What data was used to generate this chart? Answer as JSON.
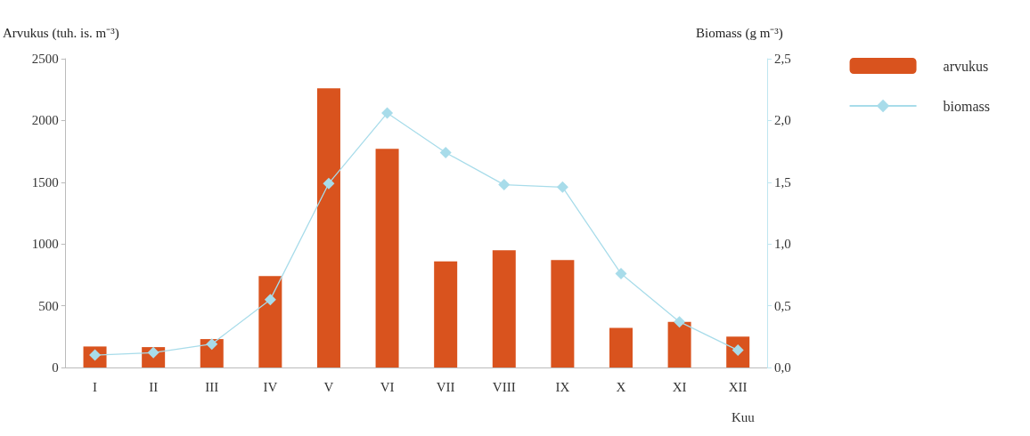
{
  "chart_data": {
    "type": "bar",
    "xlabel": "Kuu",
    "ylabel": "Arvukus (tuh. is. m⁻³)",
    "y2label": "Biomass (g m⁻³)",
    "categories": [
      "I",
      "II",
      "III",
      "IV",
      "V",
      "VI",
      "VII",
      "VIII",
      "IX",
      "X",
      "XI",
      "XII"
    ],
    "series": [
      {
        "name": "arvukus",
        "color": "#d9531e",
        "values": [
          170,
          165,
          230,
          740,
          2260,
          1770,
          860,
          950,
          870,
          320,
          370,
          250
        ]
      },
      {
        "name": "biomass",
        "type": "line",
        "axis": "y2",
        "color": "#a8dcea",
        "values": [
          0.1,
          0.12,
          0.19,
          0.55,
          1.49,
          2.06,
          1.74,
          1.48,
          1.46,
          0.76,
          0.37,
          0.14
        ]
      }
    ],
    "ylim": [
      0,
      2500
    ],
    "yticks": [
      0,
      500,
      1000,
      1500,
      2000,
      2500
    ],
    "y2lim": [
      0,
      2.5
    ],
    "y2ticks": [
      {
        "value": 0,
        "label": "0,0"
      },
      {
        "value": 0.5,
        "label": "0,5"
      },
      {
        "value": 1,
        "label": "1,0"
      },
      {
        "value": 1.5,
        "label": "1,5"
      },
      {
        "value": 2,
        "label": "2,0"
      },
      {
        "value": 2.5,
        "label": "2,5"
      }
    ],
    "grid": false,
    "legend": "right",
    "marker": "diamond"
  }
}
